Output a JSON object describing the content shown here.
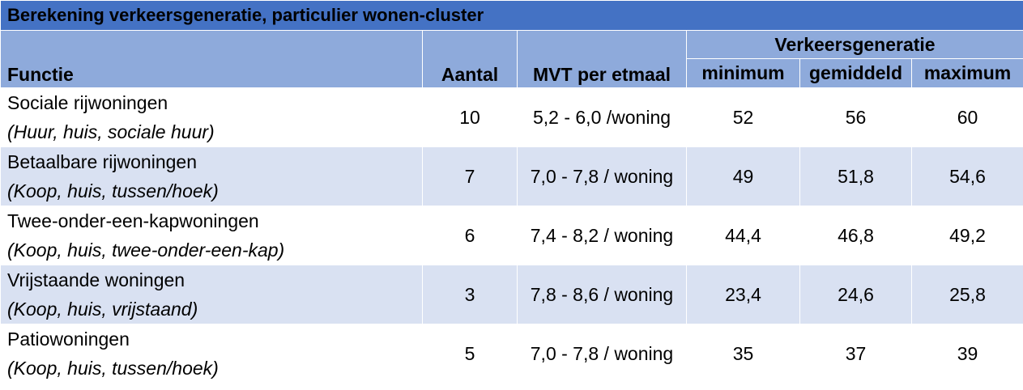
{
  "table": {
    "title": "Berekening verkeersgeneratie, particulier wonen-cluster",
    "headers": {
      "functie": "Functie",
      "aantal": "Aantal",
      "mvt": "MVT per etmaal",
      "group": "Verkeersgeneratie",
      "minimum": "minimum",
      "gemiddeld": "gemiddeld",
      "maximum": "maximum"
    },
    "rows": [
      {
        "name": "Sociale rijwoningen",
        "sub": "(Huur, huis, sociale huur)",
        "aantal": "10",
        "mvt": "5,2 - 6,0 /woning",
        "min": "52",
        "gem": "56",
        "max": "60"
      },
      {
        "name": "Betaalbare rijwoningen",
        "sub": "(Koop, huis, tussen/hoek)",
        "aantal": "7",
        "mvt": "7,0 - 7,8 / woning",
        "min": "49",
        "gem": "51,8",
        "max": "54,6"
      },
      {
        "name": "Twee-onder-een-kapwoningen",
        "sub": "(Koop, huis, twee-onder-een-kap)",
        "aantal": "6",
        "mvt": "7,4 - 8,2 / woning",
        "min": "44,4",
        "gem": "46,8",
        "max": "49,2"
      },
      {
        "name": "Vrijstaande woningen",
        "sub": "(Koop, huis, vrijstaand)",
        "aantal": "3",
        "mvt": "7,8 - 8,6 / woning",
        "min": "23,4",
        "gem": "24,6",
        "max": "25,8"
      },
      {
        "name": "Patiowoningen",
        "sub": "(Koop, huis, tussen/hoek)",
        "aantal": "5",
        "mvt": "7,0 - 7,8 / woning",
        "min": "35",
        "gem": "37",
        "max": "39"
      }
    ]
  }
}
